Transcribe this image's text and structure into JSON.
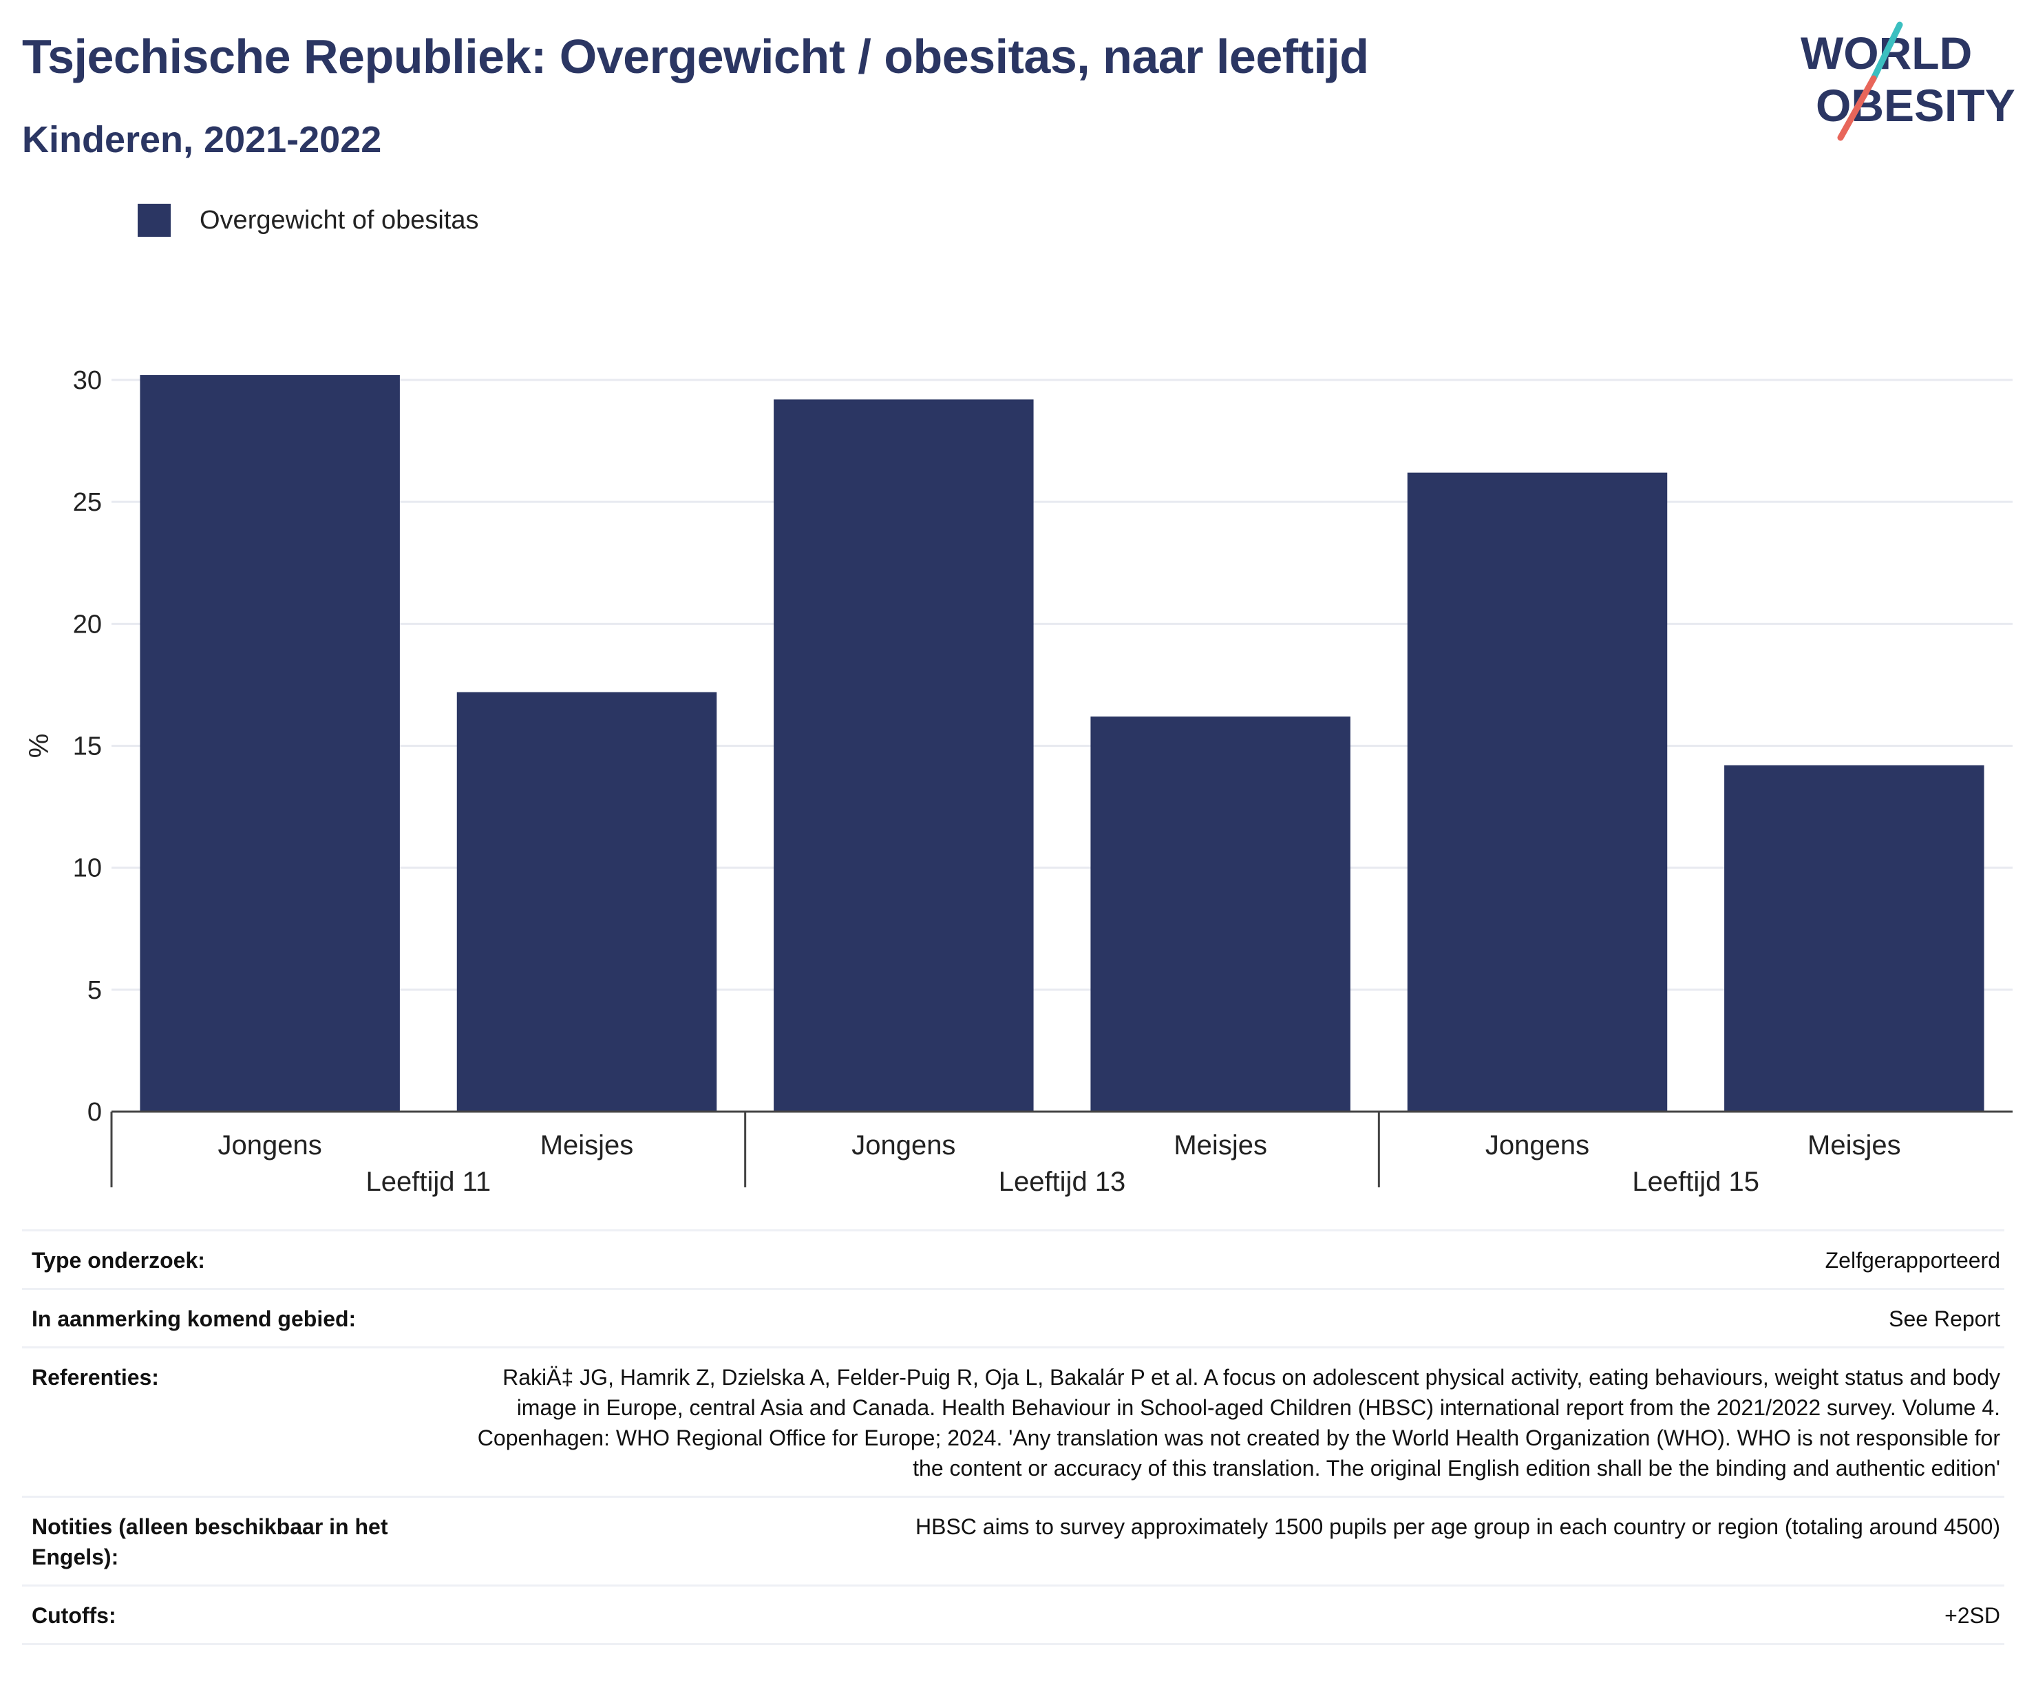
{
  "header": {
    "title": "Tsjechische Republiek: Overgewicht / obesitas, naar leeftijd",
    "subtitle": "Kinderen, 2021-2022"
  },
  "logo": {
    "line1": "WORLD",
    "line2": "OBESITY"
  },
  "legend": {
    "label": "Overgewicht of obesitas"
  },
  "chart_data": {
    "type": "bar",
    "title": "Tsjechische Republiek: Overgewicht / obesitas, naar leeftijd",
    "subtitle": "Kinderen, 2021-2022",
    "ylabel": "%",
    "ylim": [
      0,
      30
    ],
    "yticks": [
      0,
      5,
      10,
      15,
      20,
      25,
      30
    ],
    "grid": true,
    "legend_position": "top-left",
    "color": "#2b3663",
    "groups": [
      "Leeftijd 11",
      "Leeftijd 13",
      "Leeftijd 15"
    ],
    "categories": [
      "Jongens",
      "Meisjes",
      "Jongens",
      "Meisjes",
      "Jongens",
      "Meisjes"
    ],
    "series": [
      {
        "name": "Overgewicht of obesitas",
        "values": [
          30.2,
          17.2,
          29.2,
          16.2,
          26.2,
          14.2
        ]
      }
    ]
  },
  "info": [
    {
      "key": "Type onderzoek:",
      "value": "Zelfgerapporteerd"
    },
    {
      "key": "In aanmerking komend gebied:",
      "value": "See Report"
    },
    {
      "key": "Referenties:",
      "value": "RakiÄ‡ JG, Hamrik Z, Dzielska A, Felder-Puig R, Oja L, Bakalár P et al. A focus on adolescent physical activity, eating behaviours, weight status and body image in Europe, central Asia and Canada. Health Behaviour in School-aged Children (HBSC) international report from the 2021/2022 survey. Volume 4. Copenhagen: WHO Regional Office for Europe; 2024. 'Any translation was not created by the World Health Organization (WHO). WHO is not responsible for the content or accuracy of this translation. The original English edition shall be the binding and authentic edition'"
    },
    {
      "key": "Notities (alleen beschikbaar in het Engels):",
      "value": "HBSC aims to survey approximately 1500 pupils per age group in each country or region (totaling around 4500)"
    },
    {
      "key": "Cutoffs:",
      "value": "+2SD"
    }
  ]
}
